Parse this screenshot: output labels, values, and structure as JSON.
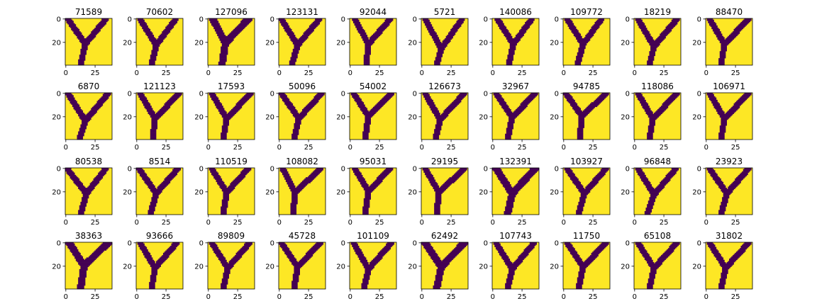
{
  "chart_data": {
    "type": "heatmap",
    "grid": {
      "rows": 4,
      "cols": 10
    },
    "image_size": 40,
    "colors": {
      "background": "#fde725",
      "foreground": "#440154"
    },
    "xticks": [
      0,
      25
    ],
    "yticks": [
      0,
      20
    ],
    "xtick_labels": [
      "0",
      "25"
    ],
    "ytick_labels": [
      "0",
      "20"
    ],
    "panels": [
      {
        "title": "71589",
        "junction": [
          17,
          22
        ],
        "left_top": 2,
        "right_top": 35,
        "stem_bottom": 13,
        "thickness": 5
      },
      {
        "title": "70602",
        "junction": [
          17,
          23
        ],
        "left_top": 3,
        "right_top": 34,
        "stem_bottom": 13,
        "thickness": 5
      },
      {
        "title": "127096",
        "junction": [
          15,
          21
        ],
        "left_top": 4,
        "right_top": 35,
        "stem_bottom": 12,
        "thickness": 6
      },
      {
        "title": "123131",
        "junction": [
          16,
          23
        ],
        "left_top": 2,
        "right_top": 35,
        "stem_bottom": 11,
        "thickness": 5
      },
      {
        "title": "92044",
        "junction": [
          16,
          22
        ],
        "left_top": 4,
        "right_top": 35,
        "stem_bottom": 14,
        "thickness": 5
      },
      {
        "title": "5721",
        "junction": [
          17,
          26
        ],
        "left_top": 3,
        "right_top": 35,
        "stem_bottom": 13,
        "thickness": 5
      },
      {
        "title": "140086",
        "junction": [
          18,
          22
        ],
        "left_top": 4,
        "right_top": 34,
        "stem_bottom": 14,
        "thickness": 5
      },
      {
        "title": "109772",
        "junction": [
          17,
          22
        ],
        "left_top": 3,
        "right_top": 33,
        "stem_bottom": 12,
        "thickness": 5
      },
      {
        "title": "18219",
        "junction": [
          17,
          24
        ],
        "left_top": 3,
        "right_top": 37,
        "stem_bottom": 13,
        "thickness": 5
      },
      {
        "title": "88470",
        "junction": [
          16,
          22
        ],
        "left_top": 3,
        "right_top": 37,
        "stem_bottom": 13,
        "thickness": 5
      },
      {
        "title": "6870",
        "junction": [
          17,
          24
        ],
        "left_top": 2,
        "right_top": 37,
        "stem_bottom": 12,
        "thickness": 5
      },
      {
        "title": "121123",
        "junction": [
          16,
          22
        ],
        "left_top": 3,
        "right_top": 37,
        "stem_bottom": 14,
        "thickness": 5
      },
      {
        "title": "17593",
        "junction": [
          16,
          22
        ],
        "left_top": 3,
        "right_top": 37,
        "stem_bottom": 13,
        "thickness": 5
      },
      {
        "title": "50096",
        "junction": [
          17,
          22
        ],
        "left_top": 2,
        "right_top": 37,
        "stem_bottom": 13,
        "thickness": 5
      },
      {
        "title": "54002",
        "junction": [
          16,
          20
        ],
        "left_top": 3,
        "right_top": 36,
        "stem_bottom": 13,
        "thickness": 5
      },
      {
        "title": "126673",
        "junction": [
          16,
          23
        ],
        "left_top": 3,
        "right_top": 37,
        "stem_bottom": 12,
        "thickness": 5
      },
      {
        "title": "32967",
        "junction": [
          17,
          21
        ],
        "left_top": 3,
        "right_top": 37,
        "stem_bottom": 13,
        "thickness": 5
      },
      {
        "title": "94785",
        "junction": [
          16,
          20
        ],
        "left_top": 2,
        "right_top": 37,
        "stem_bottom": 14,
        "thickness": 5
      },
      {
        "title": "118086",
        "junction": [
          16,
          22
        ],
        "left_top": 3,
        "right_top": 37,
        "stem_bottom": 13,
        "thickness": 5
      },
      {
        "title": "106971",
        "junction": [
          16,
          22
        ],
        "left_top": 3,
        "right_top": 37,
        "stem_bottom": 13,
        "thickness": 5
      },
      {
        "title": "80538",
        "junction": [
          18,
          22
        ],
        "left_top": 1,
        "right_top": 35,
        "stem_bottom": 13,
        "thickness": 5
      },
      {
        "title": "8514",
        "junction": [
          17,
          22
        ],
        "left_top": 2,
        "right_top": 36,
        "stem_bottom": 12,
        "thickness": 5
      },
      {
        "title": "110519",
        "junction": [
          16,
          21
        ],
        "left_top": 3,
        "right_top": 35,
        "stem_bottom": 13,
        "thickness": 5
      },
      {
        "title": "108082",
        "junction": [
          14,
          21
        ],
        "left_top": 3,
        "right_top": 36,
        "stem_bottom": 12,
        "thickness": 5
      },
      {
        "title": "95031",
        "junction": [
          16,
          20
        ],
        "left_top": 4,
        "right_top": 35,
        "stem_bottom": 13,
        "thickness": 5
      },
      {
        "title": "29195",
        "junction": [
          15,
          21
        ],
        "left_top": 3,
        "right_top": 37,
        "stem_bottom": 13,
        "thickness": 5
      },
      {
        "title": "132391",
        "junction": [
          17,
          22
        ],
        "left_top": 3,
        "right_top": 37,
        "stem_bottom": 13,
        "thickness": 6
      },
      {
        "title": "103927",
        "junction": [
          18,
          22
        ],
        "left_top": 3,
        "right_top": 37,
        "stem_bottom": 13,
        "thickness": 5
      },
      {
        "title": "96848",
        "junction": [
          17,
          23
        ],
        "left_top": 3,
        "right_top": 36,
        "stem_bottom": 11,
        "thickness": 5
      },
      {
        "title": "23923",
        "junction": [
          18,
          22
        ],
        "left_top": 3,
        "right_top": 37,
        "stem_bottom": 13,
        "thickness": 5
      },
      {
        "title": "38363",
        "junction": [
          16,
          20
        ],
        "left_top": 3,
        "right_top": 37,
        "stem_bottom": 13,
        "thickness": 6
      },
      {
        "title": "93666",
        "junction": [
          16,
          22
        ],
        "left_top": 3,
        "right_top": 35,
        "stem_bottom": 13,
        "thickness": 5
      },
      {
        "title": "89809",
        "junction": [
          17,
          22
        ],
        "left_top": 3,
        "right_top": 36,
        "stem_bottom": 13,
        "thickness": 5
      },
      {
        "title": "45728",
        "junction": [
          16,
          21
        ],
        "left_top": 2,
        "right_top": 36,
        "stem_bottom": 13,
        "thickness": 5
      },
      {
        "title": "101109",
        "junction": [
          16,
          23
        ],
        "left_top": 3,
        "right_top": 36,
        "stem_bottom": 12,
        "thickness": 5
      },
      {
        "title": "62492",
        "junction": [
          17,
          21
        ],
        "left_top": 3,
        "right_top": 37,
        "stem_bottom": 13,
        "thickness": 6
      },
      {
        "title": "107743",
        "junction": [
          17,
          23
        ],
        "left_top": 3,
        "right_top": 36,
        "stem_bottom": 13,
        "thickness": 5
      },
      {
        "title": "11750",
        "junction": [
          17,
          21
        ],
        "left_top": 3,
        "right_top": 37,
        "stem_bottom": 13,
        "thickness": 5
      },
      {
        "title": "65108",
        "junction": [
          17,
          22
        ],
        "left_top": 3,
        "right_top": 37,
        "stem_bottom": 13,
        "thickness": 5
      },
      {
        "title": "31802",
        "junction": [
          17,
          22
        ],
        "left_top": 3,
        "right_top": 37,
        "stem_bottom": 13,
        "thickness": 5
      }
    ]
  }
}
